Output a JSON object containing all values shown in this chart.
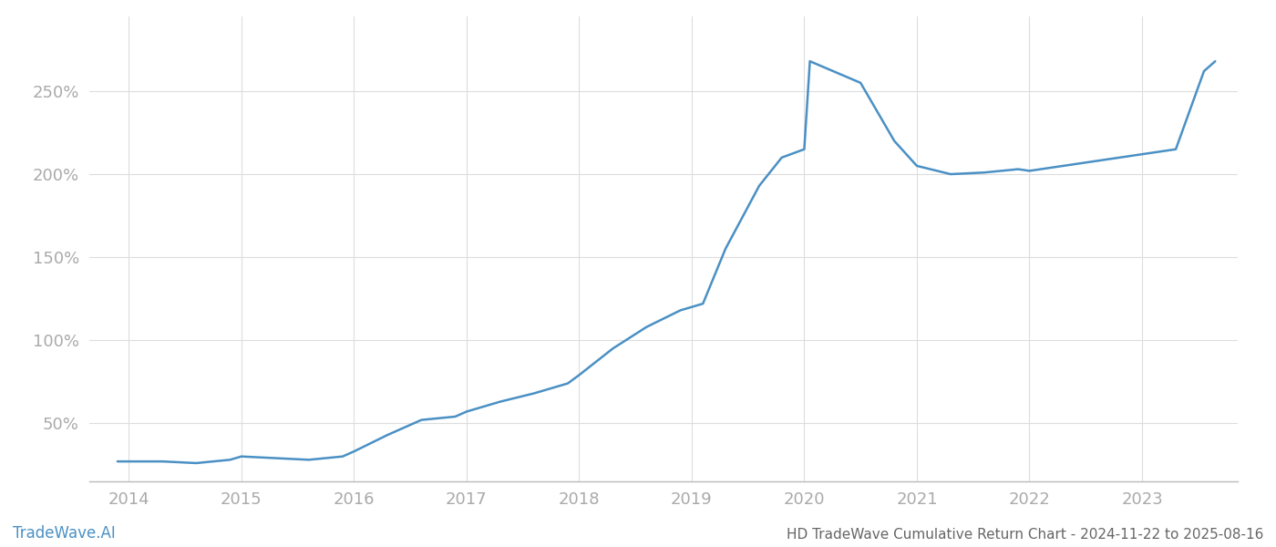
{
  "x_years": [
    2013.9,
    2014.0,
    2014.3,
    2014.6,
    2014.9,
    2015.0,
    2015.3,
    2015.6,
    2015.9,
    2016.0,
    2016.3,
    2016.6,
    2016.9,
    2017.0,
    2017.3,
    2017.6,
    2017.9,
    2018.0,
    2018.3,
    2018.6,
    2018.9,
    2019.0,
    2019.1,
    2019.3,
    2019.6,
    2019.8,
    2020.0,
    2020.05,
    2020.5,
    2020.8,
    2021.0,
    2021.3,
    2021.6,
    2021.9,
    2022.0,
    2022.3,
    2022.6,
    2022.9,
    2023.0,
    2023.3,
    2023.55,
    2023.65
  ],
  "y_values": [
    27,
    27,
    27,
    26,
    28,
    30,
    29,
    28,
    30,
    33,
    43,
    52,
    54,
    57,
    63,
    68,
    74,
    79,
    95,
    108,
    118,
    120,
    122,
    155,
    193,
    210,
    215,
    268,
    255,
    220,
    205,
    200,
    201,
    203,
    202,
    205,
    208,
    211,
    212,
    215,
    262,
    268
  ],
  "line_color": "#4a90c4",
  "line_width": 1.8,
  "title": "HD TradeWave Cumulative Return Chart - 2024-11-22 to 2025-08-16",
  "title_fontsize": 11,
  "title_color": "#666666",
  "watermark": "TradeWave.AI",
  "watermark_fontsize": 12,
  "watermark_color": "#4a90c4",
  "yticks": [
    50,
    100,
    150,
    200,
    250
  ],
  "xticks": [
    2014,
    2015,
    2016,
    2017,
    2018,
    2019,
    2020,
    2021,
    2022,
    2023
  ],
  "xlim": [
    2013.65,
    2023.85
  ],
  "ylim": [
    15,
    295
  ],
  "tick_color": "#aaaaaa",
  "tick_fontsize": 13,
  "grid_color": "#dddddd",
  "grid_linewidth": 0.8,
  "bg_color": "#ffffff",
  "spine_color": "#bbbbbb"
}
